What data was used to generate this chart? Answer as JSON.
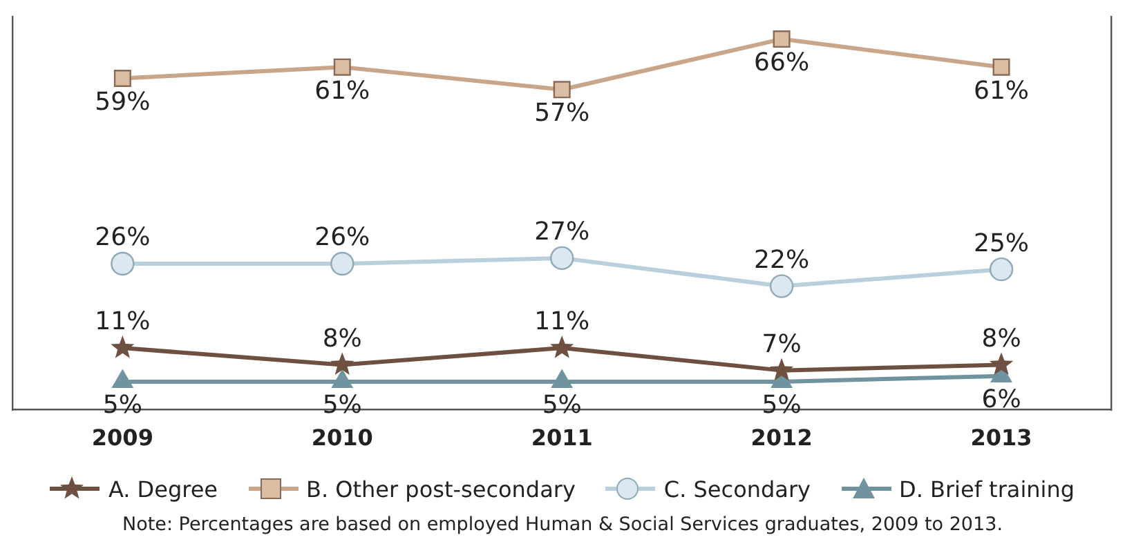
{
  "chart_data": {
    "type": "line",
    "categories": [
      "2009",
      "2010",
      "2011",
      "2012",
      "2013"
    ],
    "legend": "bottom",
    "grid": false,
    "tick_labels": "x",
    "line_style": "solid",
    "series": [
      {
        "name": "A. Degree",
        "color": "#6e5040",
        "marker": "star",
        "values": [
          11,
          8,
          11,
          7,
          8
        ],
        "value_labels": [
          "11%",
          "8%",
          "11%",
          "7%",
          "8%"
        ]
      },
      {
        "name": "B. Other post-secondary",
        "color": "#c9a68a",
        "marker": "square",
        "values": [
          59,
          61,
          57,
          66,
          61
        ],
        "value_labels": [
          "59%",
          "61%",
          "57%",
          "66%",
          "61%"
        ]
      },
      {
        "name": "C. Secondary",
        "color": "#b9cfdc",
        "marker": "circle",
        "values": [
          26,
          26,
          27,
          22,
          25
        ],
        "value_labels": [
          "26%",
          "26%",
          "27%",
          "22%",
          "25%"
        ]
      },
      {
        "name": "D. Brief training",
        "color": "#6f939f",
        "marker": "triangle",
        "values": [
          5,
          5,
          5,
          5,
          6
        ],
        "value_labels": [
          "5%",
          "5%",
          "5%",
          "5%",
          "6%"
        ]
      }
    ],
    "annotations": [
      "Note: Percentages are based on employed Human & Social Services graduates, 2009 to 2013."
    ]
  }
}
